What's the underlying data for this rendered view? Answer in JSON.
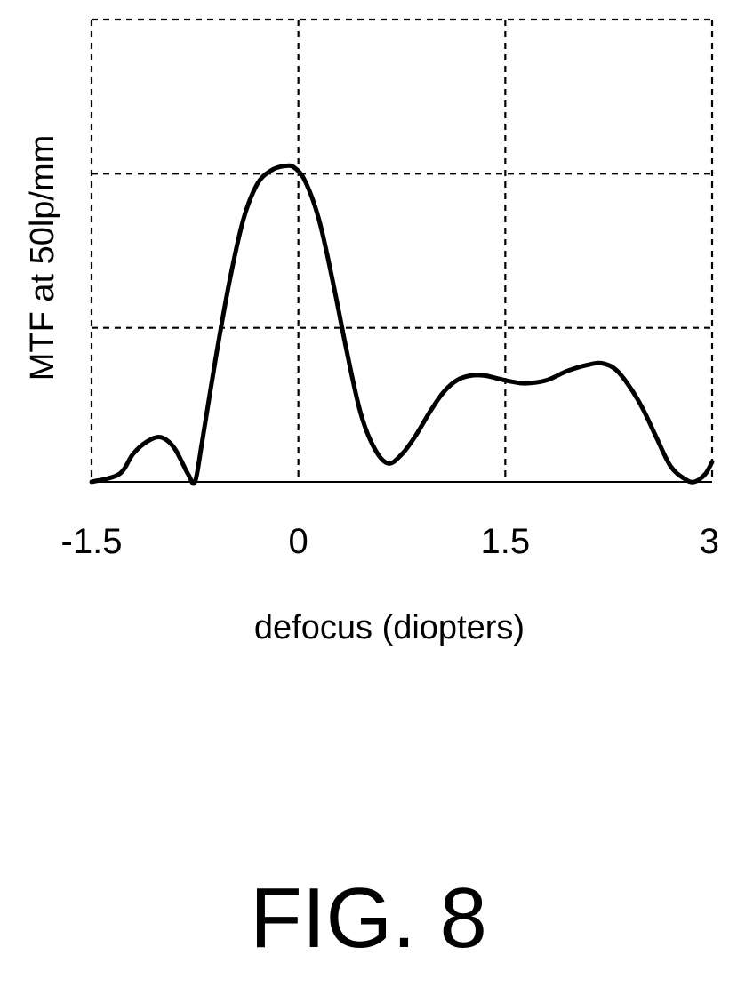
{
  "chart_data": {
    "type": "line",
    "xlabel": "defocus (diopters)",
    "ylabel": "MTF at 50lp/mm",
    "xlim": [
      -1.5,
      3
    ],
    "ylim": [
      0,
      3
    ],
    "x_ticks": [
      -1.5,
      0,
      1.5,
      3
    ],
    "x_tick_labels": [
      "-1.5",
      "0",
      "1.5",
      "3"
    ],
    "y_gridlines": [
      1,
      2,
      3
    ],
    "grid": true,
    "grid_style": "dashed",
    "line_color": "#000000",
    "series": [
      {
        "x": [
          -1.5,
          -1.3,
          -1.2,
          -1.1,
          -1.0,
          -0.9,
          -0.8,
          -0.75,
          -0.7,
          -0.6,
          -0.5,
          -0.4,
          -0.3,
          -0.2,
          -0.1,
          -0.03,
          0.05,
          0.15,
          0.25,
          0.35,
          0.45,
          0.55,
          0.65,
          0.75,
          0.85,
          0.95,
          1.05,
          1.15,
          1.25,
          1.35,
          1.45,
          1.55,
          1.65,
          1.8,
          1.95,
          2.1,
          2.2,
          2.3,
          2.4,
          2.5,
          2.6,
          2.7,
          2.8,
          2.87,
          2.95,
          3.0
        ],
        "y": [
          0.0,
          0.05,
          0.18,
          0.26,
          0.29,
          0.22,
          0.05,
          0.0,
          0.25,
          0.8,
          1.3,
          1.7,
          1.93,
          2.02,
          2.05,
          2.04,
          1.95,
          1.7,
          1.3,
          0.85,
          0.45,
          0.22,
          0.12,
          0.18,
          0.3,
          0.45,
          0.58,
          0.66,
          0.69,
          0.69,
          0.67,
          0.65,
          0.64,
          0.66,
          0.72,
          0.76,
          0.77,
          0.73,
          0.62,
          0.47,
          0.28,
          0.1,
          0.02,
          0.0,
          0.05,
          0.13
        ]
      }
    ]
  },
  "figure": {
    "caption": "FIG. 8"
  }
}
